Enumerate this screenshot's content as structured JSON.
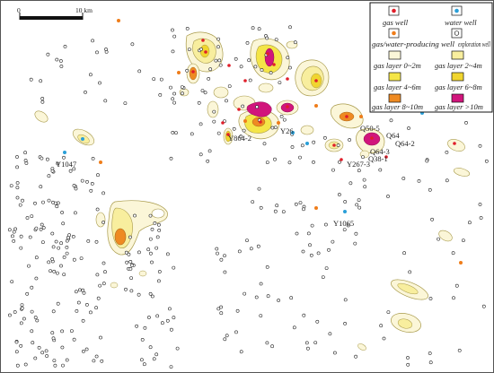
{
  "scale_bar": {
    "start": "0",
    "end": "10 km"
  },
  "legend": {
    "items": [
      {
        "key": "gas_well",
        "label": "gas well",
        "color": "#e01e2a"
      },
      {
        "key": "water_well",
        "label": "water well",
        "color": "#2a9fd8"
      },
      {
        "key": "gas_water_well",
        "label": "gas/water-producing well",
        "color": "#ef7d1a"
      },
      {
        "key": "exploration_well",
        "label": "exploration well",
        "color": "#ffffff"
      },
      {
        "key": "gas_0_2",
        "label": "gas layer 0~2m",
        "color": "#fbf6d8"
      },
      {
        "key": "gas_2_4",
        "label": "gas layer 2~4m",
        "color": "#f8ee9e"
      },
      {
        "key": "gas_4_6",
        "label": "gas layer 4~6m",
        "color": "#f4e547"
      },
      {
        "key": "gas_6_8",
        "label": "gas layer 6~8m",
        "color": "#f0d52f"
      },
      {
        "key": "gas_8_10",
        "label": "gas layer 8~10m",
        "color": "#ee8a22"
      },
      {
        "key": "gas_gt10",
        "label": "gas layer >10m",
        "color": "#d1157c"
      }
    ]
  },
  "well_labels": {
    "y1047": "Y1047",
    "y864_2": "Y864-2",
    "y26": "Y26",
    "q50_5": "Q50-5",
    "q64": "Q64",
    "q64_2": "Q64-2",
    "q64_3": "Q64-3",
    "q38_1": "Q38-1",
    "y267_3": "Y267-3",
    "y1065": "Y1065"
  }
}
